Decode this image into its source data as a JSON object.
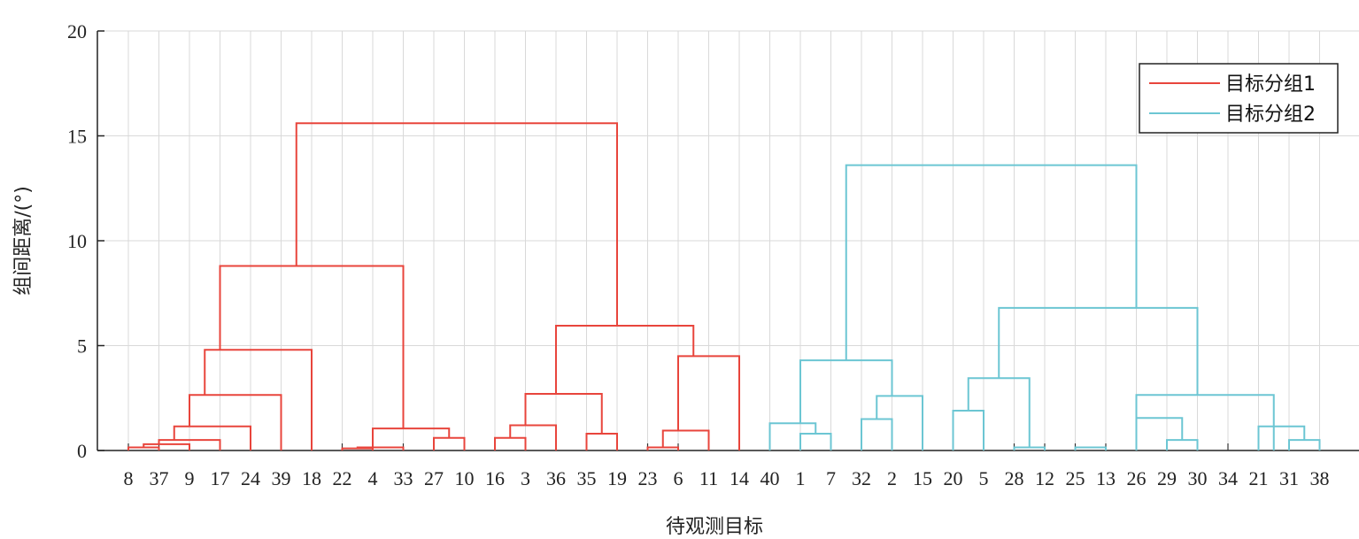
{
  "chart_data": {
    "type": "dendrogram",
    "xlabel": "待观测目标",
    "ylabel": "组间距离/(°)",
    "ylim": [
      0,
      20
    ],
    "yticks": [
      0,
      5,
      10,
      15,
      20
    ],
    "grid": true,
    "legend_position": "top-right",
    "leaf_order": [
      "8",
      "37",
      "9",
      "17",
      "24",
      "39",
      "18",
      "22",
      "4",
      "33",
      "27",
      "10",
      "16",
      "3",
      "36",
      "35",
      "19",
      "23",
      "6",
      "11",
      "14",
      "40",
      "1",
      "7",
      "32",
      "2",
      "15",
      "20",
      "5",
      "28",
      "12",
      "25",
      "13",
      "26",
      "29",
      "30",
      "34",
      "21",
      "31",
      "38"
    ],
    "series": [
      {
        "name": "目标分组1",
        "color": "#e8453c"
      },
      {
        "name": "目标分组2",
        "color": "#6cc6d3"
      }
    ],
    "links": [
      {
        "group": 1,
        "left": [
          0
        ],
        "right": [
          1
        ],
        "height": 0.15
      },
      {
        "group": 1,
        "left": [
          0,
          1
        ],
        "right": [
          2
        ],
        "height": 0.3
      },
      {
        "group": 1,
        "left": [
          0,
          1,
          2
        ],
        "right": [
          3
        ],
        "height": 0.5
      },
      {
        "group": 1,
        "left": [
          0,
          1,
          2,
          3
        ],
        "right": [
          4
        ],
        "height": 1.15
      },
      {
        "group": 1,
        "left": [
          0,
          1,
          2,
          3,
          4
        ],
        "right": [
          5
        ],
        "height": 2.65
      },
      {
        "group": 1,
        "left": [
          0,
          1,
          2,
          3,
          4,
          5
        ],
        "right": [
          6
        ],
        "height": 4.8
      },
      {
        "group": 1,
        "left": [
          7
        ],
        "right": [
          8
        ],
        "height": 0.1
      },
      {
        "group": 1,
        "left": [
          7,
          8
        ],
        "right": [
          9
        ],
        "height": 0.15
      },
      {
        "group": 1,
        "left": [
          10
        ],
        "right": [
          11
        ],
        "height": 0.6
      },
      {
        "group": 1,
        "left": [
          7,
          8,
          9
        ],
        "right": [
          10,
          11
        ],
        "height": 1.05
      },
      {
        "group": 1,
        "left": [
          0,
          1,
          2,
          3,
          4,
          5,
          6
        ],
        "right": [
          7,
          8,
          9,
          10,
          11
        ],
        "height": 8.8
      },
      {
        "group": 1,
        "left": [
          12
        ],
        "right": [
          13
        ],
        "height": 0.6
      },
      {
        "group": 1,
        "left": [
          12,
          13
        ],
        "right": [
          14
        ],
        "height": 1.2
      },
      {
        "group": 1,
        "left": [
          15
        ],
        "right": [
          16
        ],
        "height": 0.8
      },
      {
        "group": 1,
        "left": [
          12,
          13,
          14
        ],
        "right": [
          15,
          16
        ],
        "height": 2.7
      },
      {
        "group": 1,
        "left": [
          17
        ],
        "right": [
          18
        ],
        "height": 0.15
      },
      {
        "group": 1,
        "left": [
          17,
          18
        ],
        "right": [
          19
        ],
        "height": 0.95
      },
      {
        "group": 1,
        "left": [
          17,
          18,
          19
        ],
        "right": [
          20
        ],
        "height": 4.5
      },
      {
        "group": 1,
        "left": [
          12,
          13,
          14,
          15,
          16
        ],
        "right": [
          17,
          18,
          19,
          20
        ],
        "height": 5.95
      },
      {
        "group": 1,
        "left": [
          0,
          1,
          2,
          3,
          4,
          5,
          6,
          7,
          8,
          9,
          10,
          11
        ],
        "right": [
          12,
          13,
          14,
          15,
          16,
          17,
          18,
          19,
          20
        ],
        "height": 15.6
      },
      {
        "group": 2,
        "left": [
          22
        ],
        "right": [
          23
        ],
        "height": 0.8
      },
      {
        "group": 2,
        "left": [
          21
        ],
        "right": [
          22,
          23
        ],
        "height": 1.3
      },
      {
        "group": 2,
        "left": [
          24
        ],
        "right": [
          25
        ],
        "height": 1.5
      },
      {
        "group": 2,
        "left": [
          24,
          25
        ],
        "right": [
          26
        ],
        "height": 2.6
      },
      {
        "group": 2,
        "left": [
          21,
          22,
          23
        ],
        "right": [
          24,
          25,
          26
        ],
        "height": 4.3
      },
      {
        "group": 2,
        "left": [
          27
        ],
        "right": [
          28
        ],
        "height": 1.9
      },
      {
        "group": 2,
        "left": [
          29
        ],
        "right": [
          30
        ],
        "height": 0.15
      },
      {
        "group": 2,
        "left": [
          27,
          28
        ],
        "right": [
          29,
          30
        ],
        "height": 3.45
      },
      {
        "group": 2,
        "left": [
          31
        ],
        "right": [
          32
        ],
        "height": 0.15
      },
      {
        "group": 2,
        "left": [
          34
        ],
        "right": [
          35
        ],
        "height": 0.5
      },
      {
        "group": 2,
        "left": [
          33
        ],
        "right": [
          34,
          35
        ],
        "height": 1.55
      },
      {
        "group": 2,
        "left": [
          38
        ],
        "right": [
          39
        ],
        "height": 0.5
      },
      {
        "group": 2,
        "left": [
          37
        ],
        "right": [
          38,
          39
        ],
        "height": 1.15
      },
      {
        "group": 2,
        "left": [
          31,
          32,
          33,
          34,
          35
        ],
        "right": [
          36,
          37,
          38,
          39
        ],
        "height": 2.65
      },
      {
        "group": 2,
        "left": [
          27,
          28,
          29,
          30
        ],
        "right": [
          31,
          32,
          33,
          34,
          35,
          36,
          37,
          38,
          39
        ],
        "height": 6.8
      },
      {
        "group": 2,
        "left": [
          21,
          22,
          23,
          24,
          25,
          26
        ],
        "right": [
          27,
          28,
          29,
          30,
          31,
          32,
          33,
          34,
          35,
          36,
          37,
          38,
          39
        ],
        "height": 13.6
      }
    ]
  }
}
